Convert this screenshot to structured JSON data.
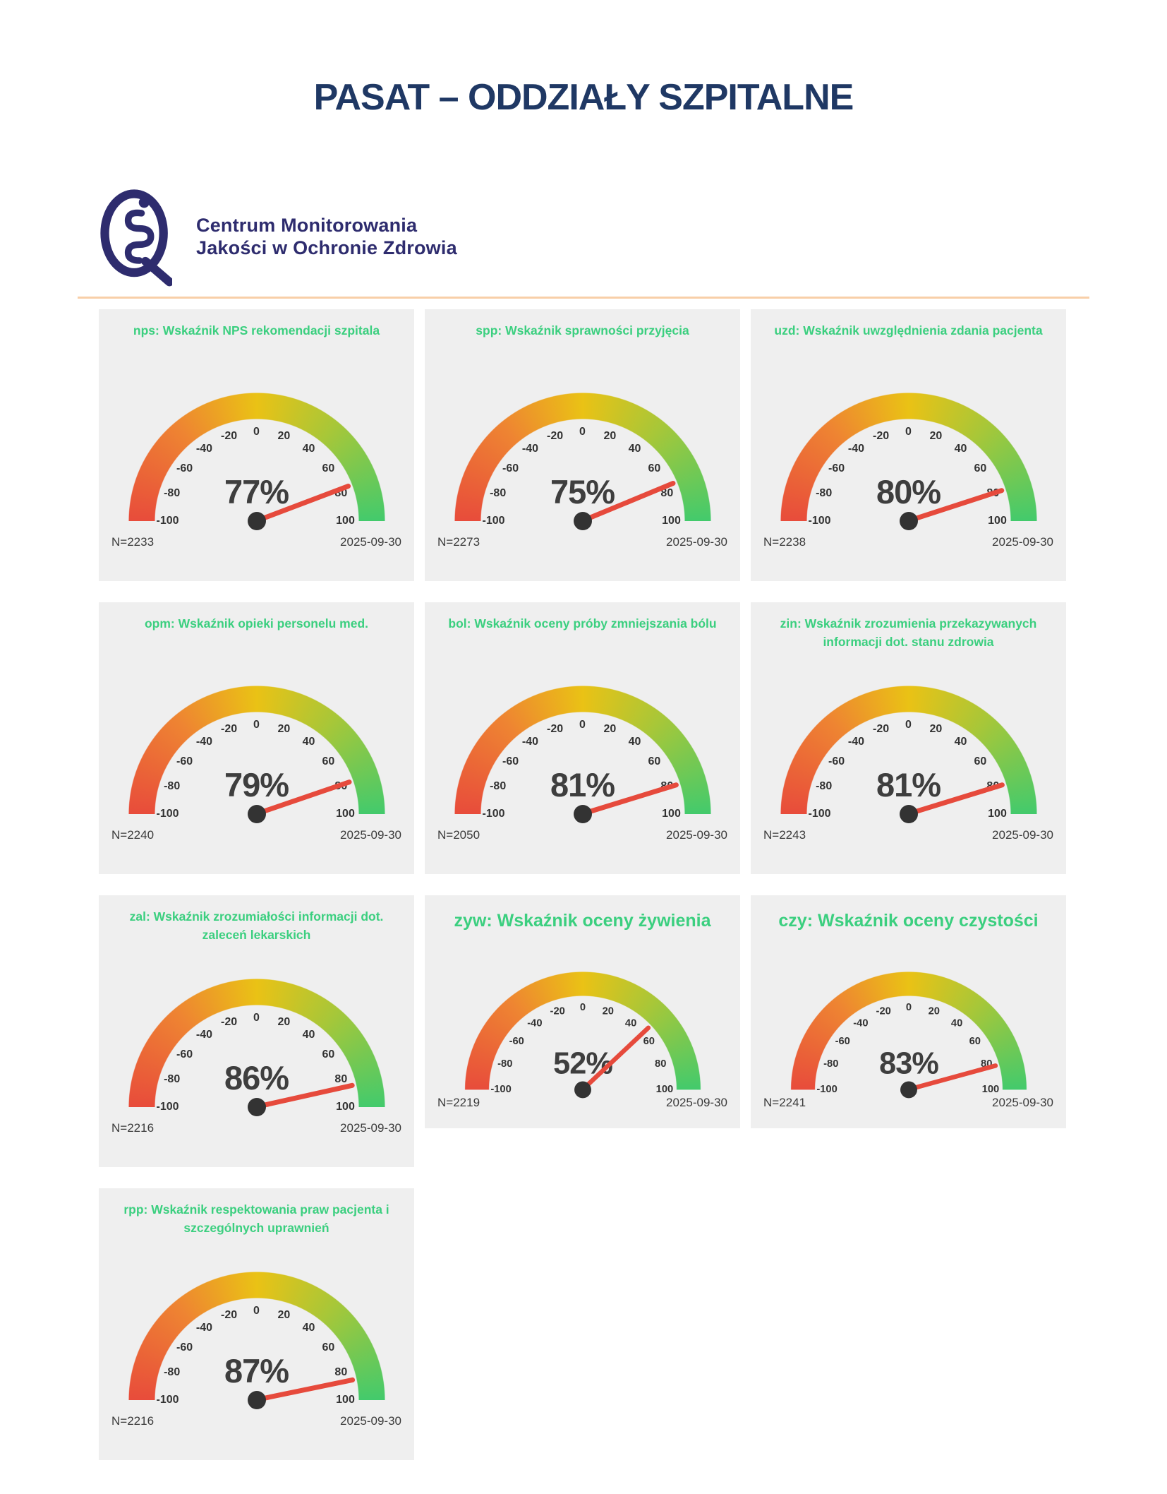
{
  "page": {
    "title": "PASAT – ODDZIAŁY SZPITALNE"
  },
  "logo": {
    "org_line1": "Centrum Monitorowania",
    "org_line2": "Jakości w Ochronie Zdrowia"
  },
  "colors": {
    "header_navy": "#1f3864",
    "logo_navy": "#2e2c6e",
    "card_background": "#efefef",
    "gauge_title_green": "#3bcf7f",
    "separator_peach": "#f8cfa8",
    "needle_red": "#e64a3c",
    "hub_dark": "#333333",
    "value_text": "#3e3e3e",
    "gradient": [
      "#e84c3b",
      "#ee8432",
      "#eac215",
      "#a6c739",
      "#43ca6c"
    ]
  },
  "gauge_config": {
    "min": -100,
    "max": 100,
    "ticks": [
      -100,
      -80,
      -60,
      -40,
      -20,
      0,
      20,
      40,
      60,
      80,
      100
    ]
  },
  "chart_data": [
    {
      "type": "gauge",
      "id": "nps",
      "title": "nps: Wskaźnik NPS rekomendacji szpitala",
      "value": 77,
      "display": "77%",
      "n": "N=2233",
      "date": "2025-09-30",
      "size": "standard"
    },
    {
      "type": "gauge",
      "id": "spp",
      "title": "spp: Wskaźnik sprawności przyjęcia",
      "value": 75,
      "display": "75%",
      "n": "N=2273",
      "date": "2025-09-30",
      "size": "standard"
    },
    {
      "type": "gauge",
      "id": "uzd",
      "title": "uzd: Wskaźnik uwzględnienia zdania pacjenta",
      "value": 80,
      "display": "80%",
      "n": "N=2238",
      "date": "2025-09-30",
      "size": "standard"
    },
    {
      "type": "gauge",
      "id": "opm",
      "title": "opm: Wskaźnik opieki personelu med.",
      "value": 79,
      "display": "79%",
      "n": "N=2240",
      "date": "2025-09-30",
      "size": "standard"
    },
    {
      "type": "gauge",
      "id": "bol",
      "title": "bol: Wskaźnik oceny próby zmniejszania bólu",
      "value": 81,
      "display": "81%",
      "n": "N=2050",
      "date": "2025-09-30",
      "size": "standard"
    },
    {
      "type": "gauge",
      "id": "zin",
      "title": "zin: Wskaźnik zrozumienia przekazywanych informacji dot. stanu zdrowia",
      "value": 81,
      "display": "81%",
      "n": "N=2243",
      "date": "2025-09-30",
      "size": "standard"
    },
    {
      "type": "gauge",
      "id": "zal",
      "title": "zal: Wskaźnik zrozumiałości informacji dot. zaleceń lekarskich",
      "value": 86,
      "display": "86%",
      "n": "N=2216",
      "date": "2025-09-30",
      "size": "standard"
    },
    {
      "type": "gauge",
      "id": "zyw",
      "title": "zyw: Wskaźnik oceny żywienia",
      "value": 52,
      "display": "52%",
      "n": "N=2219",
      "date": "2025-09-30",
      "size": "compact"
    },
    {
      "type": "gauge",
      "id": "czy",
      "title": "czy: Wskaźnik oceny czystości",
      "value": 83,
      "display": "83%",
      "n": "N=2241",
      "date": "2025-09-30",
      "size": "compact"
    },
    {
      "type": "gauge",
      "id": "rpp",
      "title": "rpp: Wskaźnik respektowania praw pacjenta i szczególnych uprawnień",
      "value": 87,
      "display": "87%",
      "n": "N=2216",
      "date": "2025-09-30",
      "size": "standard"
    }
  ]
}
